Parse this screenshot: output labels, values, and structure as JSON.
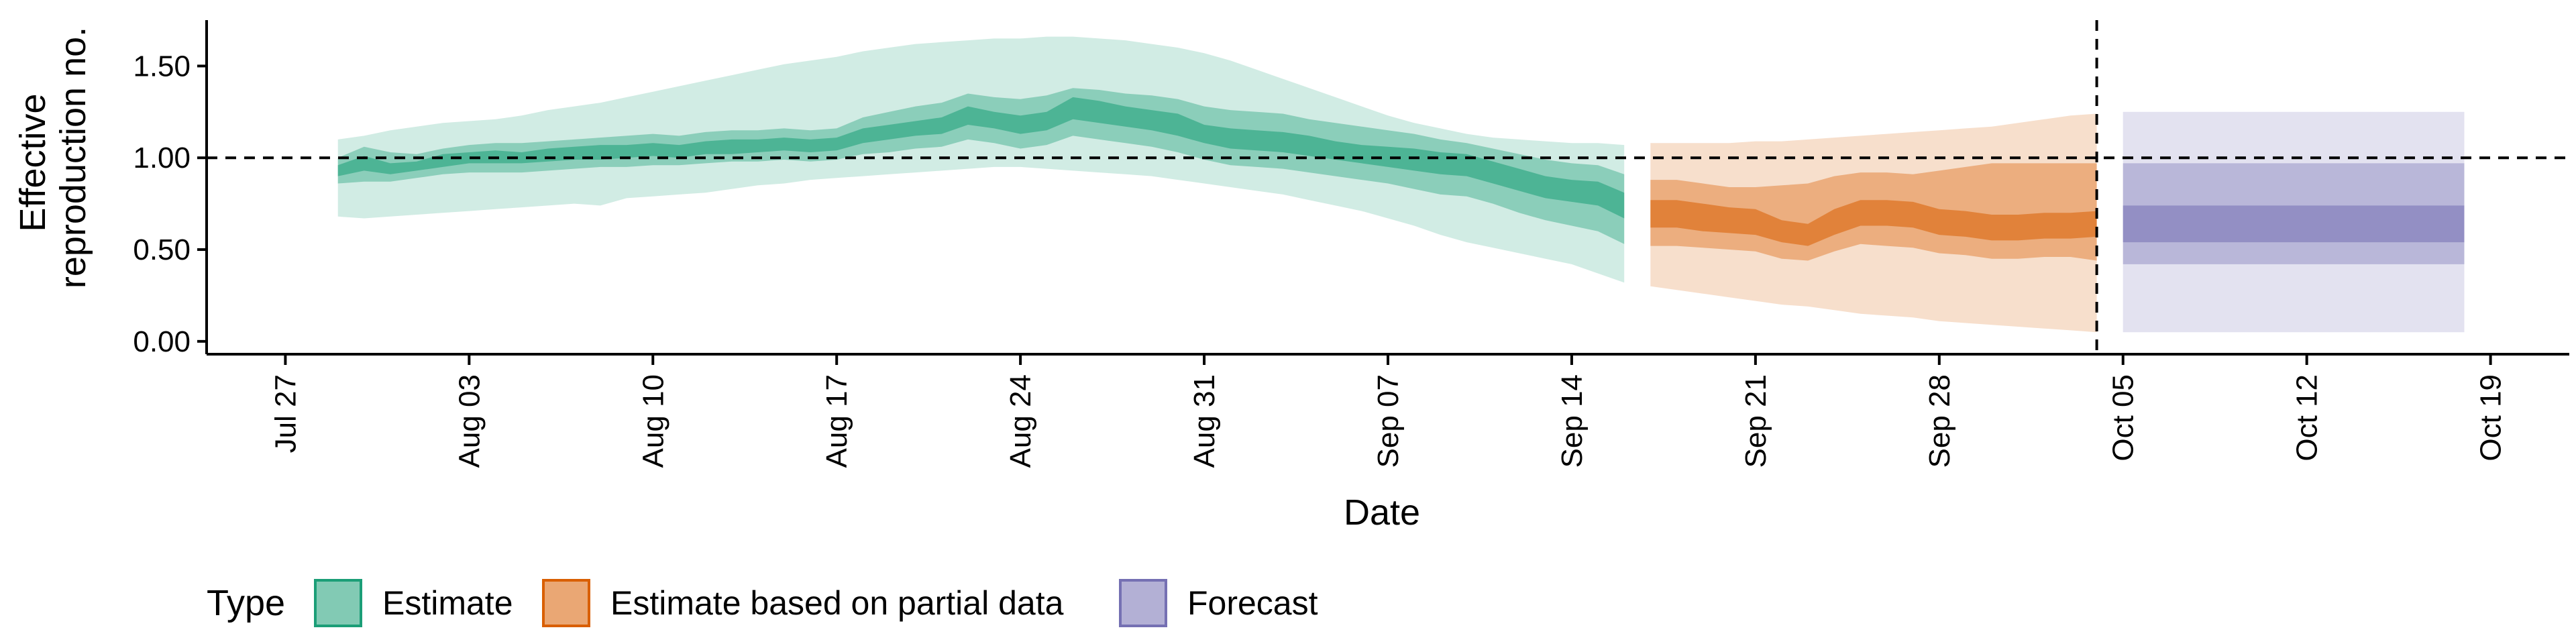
{
  "chart_data": {
    "type": "area",
    "title": "",
    "xlabel": "Date",
    "ylabel": "Effective\nreproduction no.",
    "ylim": [
      -0.07,
      1.75
    ],
    "y_ticks": [
      "0.00",
      "0.50",
      "1.00",
      "1.50"
    ],
    "y_tick_values": [
      0,
      0.5,
      1,
      1.5
    ],
    "xlim": [
      "2020-07-24",
      "2020-10-22"
    ],
    "x_ticks": [
      "Jul 27",
      "Aug 03",
      "Aug 10",
      "Aug 17",
      "Aug 24",
      "Aug 31",
      "Sep 07",
      "Sep 14",
      "Sep 21",
      "Sep 28",
      "Oct 05",
      "Oct 12",
      "Oct 19"
    ],
    "x_tick_dates": [
      "2020-07-27",
      "2020-08-03",
      "2020-08-10",
      "2020-08-17",
      "2020-08-24",
      "2020-08-31",
      "2020-09-07",
      "2020-09-14",
      "2020-09-21",
      "2020-09-28",
      "2020-10-05",
      "2020-10-12",
      "2020-10-19"
    ],
    "reference_lines": {
      "horizontal_y": 1.0,
      "vertical_date": "2020-10-04",
      "style": "dashed"
    },
    "grid": false,
    "legend": {
      "title": "Type",
      "placement": "bottom"
    },
    "series": [
      {
        "name": "Estimate",
        "color": "#1b9e77",
        "dates": [
          "2020-07-29",
          "2020-07-30",
          "2020-07-31",
          "2020-08-01",
          "2020-08-02",
          "2020-08-03",
          "2020-08-04",
          "2020-08-05",
          "2020-08-06",
          "2020-08-07",
          "2020-08-08",
          "2020-08-09",
          "2020-08-10",
          "2020-08-11",
          "2020-08-12",
          "2020-08-13",
          "2020-08-14",
          "2020-08-15",
          "2020-08-16",
          "2020-08-17",
          "2020-08-18",
          "2020-08-19",
          "2020-08-20",
          "2020-08-21",
          "2020-08-22",
          "2020-08-23",
          "2020-08-24",
          "2020-08-25",
          "2020-08-26",
          "2020-08-27",
          "2020-08-28",
          "2020-08-29",
          "2020-08-30",
          "2020-08-31",
          "2020-09-01",
          "2020-09-02",
          "2020-09-03",
          "2020-09-04",
          "2020-09-05",
          "2020-09-06",
          "2020-09-07",
          "2020-09-08",
          "2020-09-09",
          "2020-09-10",
          "2020-09-11",
          "2020-09-12",
          "2020-09-13",
          "2020-09-14",
          "2020-09-15",
          "2020-09-16"
        ],
        "median": [
          0.93,
          0.97,
          0.93,
          0.95,
          0.98,
          1.0,
          1.0,
          1.0,
          1.01,
          1.02,
          1.03,
          1.03,
          1.04,
          1.03,
          1.05,
          1.06,
          1.06,
          1.07,
          1.06,
          1.07,
          1.12,
          1.14,
          1.16,
          1.17,
          1.23,
          1.2,
          1.18,
          1.2,
          1.27,
          1.25,
          1.22,
          1.2,
          1.18,
          1.13,
          1.1,
          1.09,
          1.08,
          1.06,
          1.04,
          1.02,
          1.0,
          0.99,
          0.97,
          0.96,
          0.92,
          0.88,
          0.84,
          0.82,
          0.81,
          0.74
        ],
        "lower_50": [
          0.9,
          0.93,
          0.91,
          0.93,
          0.95,
          0.97,
          0.97,
          0.97,
          0.98,
          0.99,
          0.99,
          1.0,
          1.01,
          1.0,
          1.02,
          1.02,
          1.03,
          1.04,
          1.03,
          1.04,
          1.08,
          1.1,
          1.12,
          1.13,
          1.18,
          1.16,
          1.13,
          1.15,
          1.21,
          1.19,
          1.17,
          1.15,
          1.12,
          1.08,
          1.05,
          1.04,
          1.03,
          1.01,
          0.99,
          0.97,
          0.95,
          0.93,
          0.91,
          0.9,
          0.86,
          0.82,
          0.78,
          0.76,
          0.74,
          0.67
        ],
        "upper_50": [
          0.96,
          1.01,
          0.97,
          0.98,
          1.02,
          1.03,
          1.04,
          1.03,
          1.05,
          1.06,
          1.07,
          1.07,
          1.08,
          1.07,
          1.09,
          1.1,
          1.1,
          1.11,
          1.1,
          1.11,
          1.16,
          1.18,
          1.2,
          1.22,
          1.28,
          1.25,
          1.23,
          1.25,
          1.33,
          1.31,
          1.28,
          1.26,
          1.24,
          1.18,
          1.16,
          1.15,
          1.14,
          1.12,
          1.09,
          1.07,
          1.06,
          1.05,
          1.03,
          1.02,
          0.98,
          0.94,
          0.9,
          0.88,
          0.87,
          0.81
        ],
        "lower_90": [
          0.86,
          0.87,
          0.87,
          0.89,
          0.91,
          0.92,
          0.92,
          0.92,
          0.93,
          0.94,
          0.95,
          0.95,
          0.96,
          0.96,
          0.97,
          0.98,
          0.98,
          0.99,
          0.98,
          0.99,
          1.02,
          1.03,
          1.05,
          1.06,
          1.1,
          1.08,
          1.05,
          1.07,
          1.12,
          1.1,
          1.08,
          1.06,
          1.03,
          0.99,
          0.96,
          0.95,
          0.94,
          0.92,
          0.9,
          0.88,
          0.86,
          0.83,
          0.8,
          0.79,
          0.75,
          0.7,
          0.66,
          0.63,
          0.6,
          0.53
        ],
        "upper_90": [
          1.0,
          1.06,
          1.03,
          1.02,
          1.05,
          1.07,
          1.08,
          1.08,
          1.09,
          1.1,
          1.11,
          1.12,
          1.13,
          1.12,
          1.14,
          1.15,
          1.15,
          1.16,
          1.15,
          1.16,
          1.22,
          1.25,
          1.28,
          1.3,
          1.35,
          1.33,
          1.32,
          1.34,
          1.38,
          1.37,
          1.35,
          1.34,
          1.32,
          1.28,
          1.26,
          1.25,
          1.24,
          1.21,
          1.19,
          1.17,
          1.15,
          1.13,
          1.1,
          1.08,
          1.05,
          1.02,
          0.99,
          0.97,
          0.96,
          0.91
        ],
        "lower_ci": [
          0.68,
          0.67,
          0.68,
          0.69,
          0.7,
          0.71,
          0.72,
          0.73,
          0.74,
          0.75,
          0.74,
          0.78,
          0.79,
          0.8,
          0.81,
          0.83,
          0.85,
          0.86,
          0.88,
          0.89,
          0.9,
          0.91,
          0.92,
          0.93,
          0.94,
          0.95,
          0.95,
          0.94,
          0.93,
          0.92,
          0.91,
          0.9,
          0.88,
          0.86,
          0.84,
          0.82,
          0.8,
          0.77,
          0.74,
          0.71,
          0.67,
          0.63,
          0.58,
          0.54,
          0.51,
          0.48,
          0.45,
          0.42,
          0.37,
          0.32
        ],
        "upper_ci": [
          1.1,
          1.12,
          1.15,
          1.17,
          1.19,
          1.2,
          1.21,
          1.23,
          1.26,
          1.28,
          1.3,
          1.33,
          1.36,
          1.39,
          1.42,
          1.45,
          1.48,
          1.51,
          1.53,
          1.55,
          1.58,
          1.6,
          1.62,
          1.63,
          1.64,
          1.65,
          1.65,
          1.66,
          1.66,
          1.65,
          1.64,
          1.62,
          1.6,
          1.57,
          1.53,
          1.48,
          1.43,
          1.38,
          1.33,
          1.28,
          1.23,
          1.19,
          1.16,
          1.13,
          1.11,
          1.1,
          1.09,
          1.08,
          1.08,
          1.07
        ]
      },
      {
        "name": "Estimate based on partial data",
        "color": "#d95f02",
        "dates": [
          "2020-09-17",
          "2020-09-18",
          "2020-09-19",
          "2020-09-20",
          "2020-09-21",
          "2020-09-22",
          "2020-09-23",
          "2020-09-24",
          "2020-09-25",
          "2020-09-26",
          "2020-09-27",
          "2020-09-28",
          "2020-09-29",
          "2020-09-30",
          "2020-10-01",
          "2020-10-02",
          "2020-10-03",
          "2020-10-04"
        ],
        "median": [
          0.7,
          0.7,
          0.68,
          0.66,
          0.65,
          0.6,
          0.58,
          0.65,
          0.7,
          0.7,
          0.69,
          0.65,
          0.64,
          0.62,
          0.62,
          0.63,
          0.63,
          0.64
        ],
        "lower_50": [
          0.62,
          0.62,
          0.6,
          0.59,
          0.58,
          0.54,
          0.52,
          0.58,
          0.63,
          0.63,
          0.62,
          0.58,
          0.57,
          0.55,
          0.55,
          0.56,
          0.56,
          0.57
        ],
        "upper_50": [
          0.77,
          0.77,
          0.75,
          0.73,
          0.72,
          0.66,
          0.64,
          0.72,
          0.77,
          0.77,
          0.76,
          0.72,
          0.71,
          0.69,
          0.69,
          0.7,
          0.7,
          0.71
        ],
        "lower_90": [
          0.52,
          0.52,
          0.51,
          0.5,
          0.49,
          0.45,
          0.44,
          0.49,
          0.53,
          0.52,
          0.51,
          0.48,
          0.47,
          0.45,
          0.45,
          0.46,
          0.46,
          0.44
        ],
        "upper_90": [
          0.88,
          0.88,
          0.86,
          0.84,
          0.84,
          0.85,
          0.86,
          0.9,
          0.92,
          0.92,
          0.91,
          0.93,
          0.95,
          0.97,
          0.97,
          0.97,
          0.97,
          0.97
        ],
        "lower_ci": [
          0.3,
          0.28,
          0.26,
          0.24,
          0.22,
          0.2,
          0.19,
          0.17,
          0.15,
          0.14,
          0.13,
          0.11,
          0.1,
          0.09,
          0.08,
          0.07,
          0.06,
          0.05
        ],
        "upper_ci": [
          1.08,
          1.08,
          1.08,
          1.08,
          1.09,
          1.09,
          1.1,
          1.11,
          1.12,
          1.13,
          1.14,
          1.15,
          1.16,
          1.17,
          1.19,
          1.21,
          1.23,
          1.24
        ]
      },
      {
        "name": "Forecast",
        "color": "#7570b3",
        "dates": [
          "2020-10-05",
          "2020-10-18"
        ],
        "median": [
          0.64,
          0.64
        ],
        "lower_50": [
          0.54,
          0.54
        ],
        "upper_50": [
          0.74,
          0.74
        ],
        "lower_90": [
          0.42,
          0.42
        ],
        "upper_90": [
          0.97,
          0.97
        ],
        "lower_ci": [
          0.05,
          0.05
        ],
        "upper_ci": [
          1.25,
          1.25
        ]
      }
    ]
  }
}
